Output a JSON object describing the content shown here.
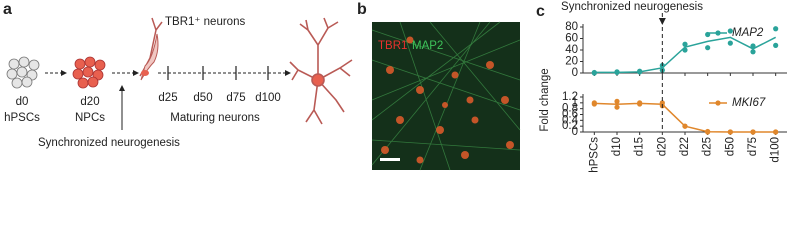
{
  "panels": {
    "a": {
      "label": "a",
      "neuron_label": "TBR1⁺ neurons",
      "stages": [
        {
          "day": "d0",
          "name": "hPSCs"
        },
        {
          "day": "d20",
          "name": "NPCs"
        }
      ],
      "timepoints": [
        "d25",
        "d50",
        "d75",
        "d100"
      ],
      "maturing": "Maturing neurons",
      "arrow_label": "Synchronized neurogenesis"
    },
    "b": {
      "label": "b",
      "stains": [
        {
          "name": "TBR1",
          "color": "#e8312e"
        },
        {
          "name": "MAP2",
          "color": "#3ec45a"
        }
      ]
    }
  },
  "chart_data": {
    "type": "line",
    "panel_label": "c",
    "annotation": {
      "text": "Synchronized neurogenesis",
      "at": "d20"
    },
    "y_label": "Fold change",
    "categories": [
      "hPSCs",
      "d10",
      "d15",
      "d20",
      "d22",
      "d25",
      "d50",
      "d75",
      "d100"
    ],
    "series": [
      {
        "name": "MAP2",
        "color": "#2aa39a",
        "values": [
          1,
          1,
          2,
          9,
          45,
          55,
          62,
          42,
          62
        ],
        "points": [
          [
            0,
            1
          ],
          [
            1,
            2
          ],
          [
            2,
            3
          ],
          [
            5,
            13
          ],
          [
            50,
            40
          ],
          [
            67,
            44
          ],
          [
            73,
            52
          ],
          [
            47,
            37
          ],
          [
            77,
            48
          ]
        ],
        "ylim": [
          0,
          80
        ],
        "yticks": [
          0,
          20,
          40,
          60,
          80
        ],
        "legend": "upper right"
      },
      {
        "name": "MKI67",
        "color": "#e0872c",
        "values": [
          0.98,
          0.95,
          0.98,
          0.95,
          0.2,
          0.01,
          0,
          0,
          0
        ],
        "points": [
          [
            1.0,
            0.96
          ],
          [
            0.85,
            1.05
          ],
          [
            1.0,
            0.96
          ],
          [
            1.0,
            0.9
          ],
          [
            0.2,
            0.2
          ],
          [
            0,
            0.02
          ],
          [
            0,
            0
          ],
          [
            0,
            0
          ],
          [
            0,
            0
          ]
        ],
        "ylim": [
          0,
          1.2
        ],
        "yticks": [
          0,
          0.2,
          0.4,
          0.6,
          0.8,
          1,
          1.2
        ],
        "legend": "upper right"
      }
    ]
  }
}
